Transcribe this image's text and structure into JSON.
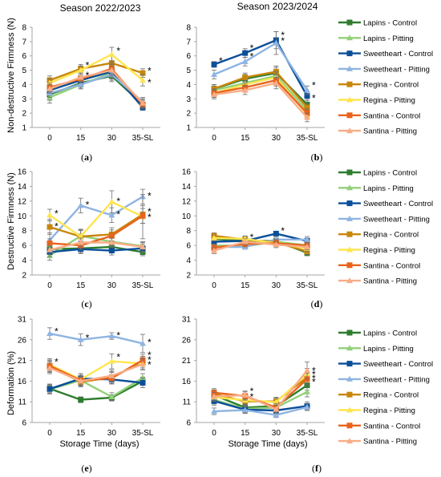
{
  "titles": {
    "left": "Season 2022/2023",
    "right": "Season 2023/2024"
  },
  "axis_labels": {
    "y_top": "Non-destructive Firmness (N)",
    "y_mid": "Destructive Firmness (N)",
    "y_bottom": "Deformation (%)",
    "x_bottom": "Storage Time (days)"
  },
  "panel_letters": [
    "a",
    "b",
    "c",
    "d",
    "e",
    "f"
  ],
  "series_names": [
    "Lapins - Control",
    "Lapins - Pitting",
    "Sweetheart - Control",
    "Sweetheart - Pitting",
    "Regina - Control",
    "Regina - Pitting",
    "Santina - Control",
    "Santina - Pitting"
  ],
  "colors": [
    "#2e7d2e",
    "#92d07a",
    "#0b4f99",
    "#8fb4e2",
    "#c8860c",
    "#ffe54f",
    "#e8641c",
    "#f8ad86"
  ],
  "chart_data": [
    {
      "panel": "a",
      "type": "line",
      "title": "Season 2022/2023",
      "xlabel": "",
      "ylabel": "Non-destructive Firmness (N)",
      "categories": [
        "0",
        "15",
        "30",
        "35-SL"
      ],
      "ylim": [
        1,
        8
      ],
      "yticks": [
        1,
        2,
        3,
        4,
        5,
        6,
        7,
        8
      ],
      "series": [
        {
          "name": "Lapins - Control",
          "values": [
            3.3,
            4.1,
            4.6,
            2.6
          ],
          "err": [
            0.4,
            0.3,
            0.4,
            0.3
          ]
        },
        {
          "name": "Lapins - Pitting",
          "values": [
            3.1,
            4.0,
            4.8,
            2.7
          ],
          "err": [
            0.4,
            0.3,
            0.4,
            0.3
          ]
        },
        {
          "name": "Sweetheart - Control",
          "values": [
            3.6,
            4.3,
            4.9,
            2.4
          ],
          "err": [
            0.3,
            0.3,
            0.4,
            0.2
          ]
        },
        {
          "name": "Sweetheart - Pitting",
          "values": [
            3.4,
            4.0,
            4.7,
            2.8
          ],
          "err": [
            0.3,
            0.3,
            0.4,
            0.3
          ]
        },
        {
          "name": "Regina - Control",
          "values": [
            4.3,
            5.1,
            5.5,
            4.8
          ],
          "err": [
            0.3,
            0.3,
            0.5,
            0.3
          ]
        },
        {
          "name": "Regina - Pitting",
          "values": [
            4.1,
            5.0,
            6.1,
            4.3
          ],
          "err": [
            0.3,
            0.3,
            0.5,
            0.4
          ]
        },
        {
          "name": "Santina - Control",
          "values": [
            3.8,
            4.4,
            5.1,
            2.6
          ],
          "err": [
            0.3,
            0.3,
            0.4,
            0.3
          ]
        },
        {
          "name": "Santina - Pitting",
          "values": [
            3.7,
            4.5,
            5.0,
            2.7
          ],
          "err": [
            0.3,
            0.3,
            0.4,
            0.3
          ]
        }
      ],
      "annotations": [
        {
          "x": "15",
          "y": 5.4,
          "text": "*"
        },
        {
          "x": "15",
          "y": 4.7,
          "text": "*"
        },
        {
          "x": "30",
          "y": 6.4,
          "text": "*"
        },
        {
          "x": "35-SL",
          "y": 5.0,
          "text": "*"
        },
        {
          "x": "35-SL",
          "y": 4.2,
          "text": "*"
        }
      ]
    },
    {
      "panel": "b",
      "type": "line",
      "title": "Season 2023/2024",
      "xlabel": "",
      "ylabel": "",
      "categories": [
        "0",
        "15",
        "30",
        "35-SL"
      ],
      "ylim": [
        1,
        8
      ],
      "yticks": [
        1,
        2,
        3,
        4,
        5,
        6,
        7,
        8
      ],
      "series": [
        {
          "name": "Lapins - Control",
          "values": [
            3.7,
            4.4,
            4.8,
            2.6
          ],
          "err": [
            0.3,
            0.3,
            0.4,
            0.3
          ]
        },
        {
          "name": "Lapins - Pitting",
          "values": [
            3.6,
            4.1,
            4.6,
            2.2
          ],
          "err": [
            0.3,
            0.3,
            0.4,
            0.3
          ]
        },
        {
          "name": "Sweetheart - Control",
          "values": [
            5.4,
            6.2,
            7.1,
            3.2
          ],
          "err": [
            0.2,
            0.3,
            0.6,
            0.3
          ]
        },
        {
          "name": "Sweetheart - Pitting",
          "values": [
            4.7,
            5.6,
            6.9,
            3.6
          ],
          "err": [
            0.3,
            0.3,
            0.8,
            0.3
          ]
        },
        {
          "name": "Regina - Control",
          "values": [
            3.7,
            4.5,
            4.9,
            2.4
          ],
          "err": [
            0.3,
            0.3,
            0.4,
            0.3
          ]
        },
        {
          "name": "Regina - Pitting",
          "values": [
            3.4,
            4.0,
            4.5,
            1.9
          ],
          "err": [
            0.3,
            0.3,
            0.4,
            0.3
          ]
        },
        {
          "name": "Santina - Control",
          "values": [
            3.4,
            3.8,
            4.3,
            2.0
          ],
          "err": [
            0.3,
            0.3,
            0.4,
            0.3
          ]
        },
        {
          "name": "Santina - Pitting",
          "values": [
            3.3,
            3.6,
            4.1,
            1.7
          ],
          "err": [
            0.3,
            0.3,
            0.4,
            0.3
          ]
        }
      ],
      "annotations": [
        {
          "x": "0",
          "y": 5.7,
          "text": "*"
        },
        {
          "x": "15",
          "y": 6.6,
          "text": "*"
        },
        {
          "x": "15",
          "y": 6.0,
          "text": "*"
        },
        {
          "x": "30",
          "y": 7.5,
          "text": "*"
        },
        {
          "x": "30",
          "y": 7.1,
          "text": "*"
        },
        {
          "x": "35-SL",
          "y": 4.0,
          "text": "*"
        },
        {
          "x": "35-SL",
          "y": 3.1,
          "text": "*"
        }
      ]
    },
    {
      "panel": "c",
      "type": "line",
      "title": "",
      "xlabel": "",
      "ylabel": "Destructive Firmness (N)",
      "categories": [
        "0",
        "15",
        "30",
        "35-SL"
      ],
      "ylim": [
        2,
        16
      ],
      "yticks": [
        2,
        4,
        6,
        8,
        10,
        12,
        14,
        16
      ],
      "series": [
        {
          "name": "Lapins - Control",
          "values": [
            5.5,
            5.6,
            5.8,
            5.1
          ],
          "err": [
            0.6,
            0.6,
            0.6,
            0.5
          ]
        },
        {
          "name": "Lapins - Pitting",
          "values": [
            4.6,
            7.3,
            6.5,
            5.9
          ],
          "err": [
            0.6,
            0.8,
            0.7,
            0.6
          ]
        },
        {
          "name": "Sweetheart - Control",
          "values": [
            5.1,
            5.5,
            5.3,
            5.6
          ],
          "err": [
            0.6,
            0.6,
            0.6,
            0.6
          ]
        },
        {
          "name": "Sweetheart - Pitting",
          "values": [
            6.7,
            11.4,
            10.1,
            12.6
          ],
          "err": [
            1.0,
            1.0,
            1.0,
            1.0
          ]
        },
        {
          "name": "Regina - Control",
          "values": [
            8.5,
            7.2,
            7.5,
            10.2
          ],
          "err": [
            1.0,
            0.8,
            0.9,
            1.2
          ]
        },
        {
          "name": "Regina - Pitting",
          "values": [
            10.1,
            7.2,
            11.9,
            9.9
          ],
          "err": [
            0.8,
            1.0,
            1.5,
            3.0
          ]
        },
        {
          "name": "Santina - Control",
          "values": [
            6.3,
            6.0,
            7.3,
            10.0
          ],
          "err": [
            0.6,
            0.6,
            0.8,
            1.0
          ]
        },
        {
          "name": "Santina - Pitting",
          "values": [
            5.4,
            6.4,
            6.4,
            5.8
          ],
          "err": [
            0.6,
            0.6,
            0.6,
            0.6
          ]
        }
      ],
      "annotations": [
        {
          "x": "0",
          "y": 10.4,
          "text": "*"
        },
        {
          "x": "0",
          "y": 8.7,
          "text": "*"
        },
        {
          "x": "15",
          "y": 11.6,
          "text": "*"
        },
        {
          "x": "30",
          "y": 12.1,
          "text": "*"
        },
        {
          "x": "30",
          "y": 10.3,
          "text": "*"
        },
        {
          "x": "35-SL",
          "y": 12.8,
          "text": "*"
        },
        {
          "x": "35-SL",
          "y": 10.7,
          "text": "*"
        },
        {
          "x": "35-SL",
          "y": 9.9,
          "text": "*"
        }
      ]
    },
    {
      "panel": "d",
      "type": "line",
      "title": "",
      "xlabel": "",
      "ylabel": "",
      "categories": [
        "0",
        "15",
        "30",
        "35-SL"
      ],
      "ylim": [
        2,
        16
      ],
      "yticks": [
        2,
        4,
        6,
        8,
        10,
        12,
        14,
        16
      ],
      "series": [
        {
          "name": "Lapins - Control",
          "values": [
            6.9,
            6.6,
            6.6,
            5.0
          ],
          "err": [
            0.4,
            0.4,
            0.4,
            0.4
          ]
        },
        {
          "name": "Lapins - Pitting",
          "values": [
            6.0,
            5.9,
            6.5,
            6.0
          ],
          "err": [
            0.4,
            0.4,
            0.4,
            0.4
          ]
        },
        {
          "name": "Sweetheart - Control",
          "values": [
            6.5,
            6.6,
            7.6,
            6.6
          ],
          "err": [
            0.4,
            0.4,
            0.3,
            0.4
          ]
        },
        {
          "name": "Sweetheart - Pitting",
          "values": [
            5.8,
            5.8,
            6.8,
            6.8
          ],
          "err": [
            0.4,
            0.3,
            0.4,
            0.4
          ]
        },
        {
          "name": "Regina - Control",
          "values": [
            7.3,
            6.8,
            6.4,
            5.2
          ],
          "err": [
            0.4,
            0.4,
            0.4,
            0.4
          ]
        },
        {
          "name": "Regina - Pitting",
          "values": [
            7.0,
            6.9,
            6.3,
            5.6
          ],
          "err": [
            0.4,
            0.4,
            0.4,
            0.4
          ]
        },
        {
          "name": "Santina - Control",
          "values": [
            5.7,
            6.2,
            6.3,
            6.0
          ],
          "err": [
            0.4,
            0.4,
            0.4,
            0.4
          ]
        },
        {
          "name": "Santina - Pitting",
          "values": [
            5.3,
            6.5,
            6.1,
            5.8
          ],
          "err": [
            0.4,
            0.4,
            0.4,
            0.4
          ]
        }
      ],
      "annotations": [
        {
          "x": "15",
          "y": 7.2,
          "text": "*"
        },
        {
          "x": "30",
          "y": 8.1,
          "text": "*"
        }
      ]
    },
    {
      "panel": "e",
      "type": "line",
      "title": "",
      "xlabel": "Storage Time (days)",
      "ylabel": "Deformation (%)",
      "categories": [
        "0",
        "15",
        "30",
        "35-SL"
      ],
      "ylim": [
        6,
        31
      ],
      "yticks": [
        6,
        11,
        16,
        21,
        26,
        31
      ],
      "series": [
        {
          "name": "Lapins - Control",
          "values": [
            14.2,
            11.5,
            12.0,
            16.0
          ],
          "err": [
            1.0,
            0.7,
            0.7,
            1.0
          ]
        },
        {
          "name": "Lapins - Pitting",
          "values": [
            14.0,
            16.2,
            12.2,
            16.8
          ],
          "err": [
            1.0,
            1.2,
            1.0,
            1.0
          ]
        },
        {
          "name": "Sweetheart - Control",
          "values": [
            14.1,
            16.6,
            16.4,
            15.6
          ],
          "err": [
            1.2,
            1.2,
            1.0,
            1.2
          ]
        },
        {
          "name": "Sweetheart - Pitting",
          "values": [
            27.5,
            26.0,
            26.9,
            25.1
          ],
          "err": [
            1.4,
            1.4,
            0.8,
            2.2
          ]
        },
        {
          "name": "Regina - Control",
          "values": [
            19.5,
            15.8,
            16.9,
            20.6
          ],
          "err": [
            1.4,
            1.2,
            1.4,
            1.4
          ]
        },
        {
          "name": "Regina - Pitting",
          "values": [
            20.0,
            16.4,
            20.8,
            20.2
          ],
          "err": [
            1.4,
            1.4,
            1.8,
            1.4
          ]
        },
        {
          "name": "Santina - Control",
          "values": [
            19.7,
            16.2,
            16.7,
            21.1
          ],
          "err": [
            1.4,
            1.2,
            1.4,
            1.4
          ]
        },
        {
          "name": "Santina - Pitting",
          "values": [
            19.2,
            16.0,
            17.3,
            20.1
          ],
          "err": [
            1.4,
            1.2,
            1.4,
            1.4
          ]
        }
      ],
      "annotations": [
        {
          "x": "0",
          "y": 28.2,
          "text": "*"
        },
        {
          "x": "0",
          "y": 20.8,
          "text": "*"
        },
        {
          "x": "15",
          "y": 26.6,
          "text": "*"
        },
        {
          "x": "30",
          "y": 27.2,
          "text": "*"
        },
        {
          "x": "30",
          "y": 22.0,
          "text": "*"
        },
        {
          "x": "35-SL",
          "y": 25.6,
          "text": "*"
        },
        {
          "x": "35-SL",
          "y": 22.5,
          "text": "*"
        },
        {
          "x": "35-SL",
          "y": 21.3,
          "text": "*"
        },
        {
          "x": "35-SL",
          "y": 20.1,
          "text": "*"
        }
      ]
    },
    {
      "panel": "f",
      "type": "line",
      "title": "",
      "xlabel": "Storage Time (days)",
      "ylabel": "",
      "categories": [
        "0",
        "15",
        "30",
        "35-SL"
      ],
      "ylim": [
        6,
        31
      ],
      "yticks": [
        6,
        11,
        16,
        21,
        26,
        31
      ],
      "series": [
        {
          "name": "Lapins - Control",
          "values": [
            12.6,
            9.6,
            10.0,
            15.0
          ],
          "err": [
            1.0,
            1.0,
            1.0,
            1.2
          ]
        },
        {
          "name": "Lapins - Pitting",
          "values": [
            11.5,
            9.3,
            9.6,
            13.4
          ],
          "err": [
            1.0,
            1.0,
            1.0,
            1.2
          ]
        },
        {
          "name": "Sweetheart - Control",
          "values": [
            11.2,
            9.1,
            8.9,
            10.0
          ],
          "err": [
            1.0,
            0.8,
            0.8,
            1.0
          ]
        },
        {
          "name": "Sweetheart - Pitting",
          "values": [
            8.7,
            9.0,
            7.8,
            9.7
          ],
          "err": [
            0.8,
            0.8,
            0.6,
            0.8
          ]
        },
        {
          "name": "Regina - Control",
          "values": [
            12.9,
            11.1,
            11.1,
            16.9
          ],
          "err": [
            1.0,
            1.0,
            1.0,
            1.4
          ]
        },
        {
          "name": "Regina - Pitting",
          "values": [
            12.1,
            11.4,
            10.9,
            17.7
          ],
          "err": [
            1.0,
            1.0,
            1.0,
            1.4
          ]
        },
        {
          "name": "Santina - Control",
          "values": [
            13.2,
            12.4,
            9.6,
            16.5
          ],
          "err": [
            1.0,
            1.0,
            1.0,
            1.4
          ]
        },
        {
          "name": "Santina - Pitting",
          "values": [
            12.3,
            12.6,
            9.2,
            18.6
          ],
          "err": [
            1.0,
            1.0,
            1.0,
            2.0
          ]
        }
      ],
      "annotations": [
        {
          "x": "15",
          "y": 13.8,
          "text": "*"
        },
        {
          "x": "15",
          "y": 12.4,
          "text": "*"
        },
        {
          "x": "35-SL",
          "y": 18.7,
          "text": "*"
        },
        {
          "x": "35-SL",
          "y": 17.8,
          "text": "*"
        },
        {
          "x": "35-SL",
          "y": 16.9,
          "text": "*"
        },
        {
          "x": "35-SL",
          "y": 16.0,
          "text": "*"
        }
      ]
    }
  ]
}
